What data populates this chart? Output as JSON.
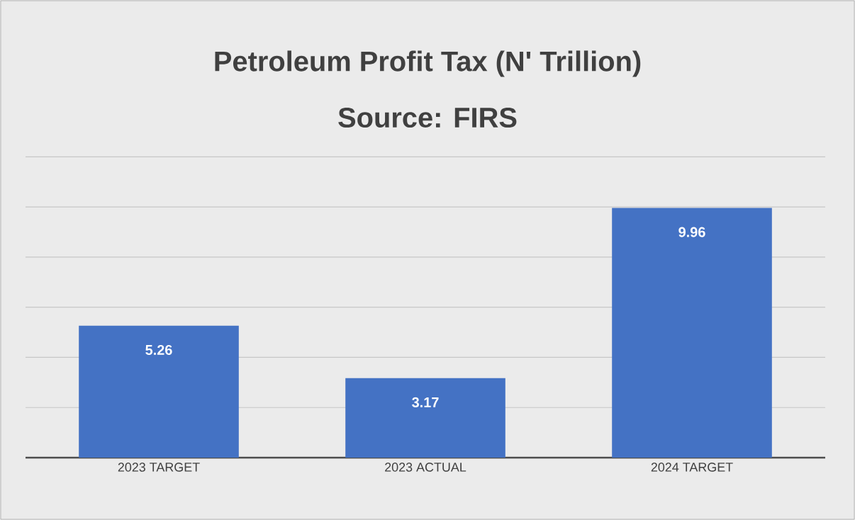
{
  "chart_data": {
    "type": "bar",
    "title": "Petroleum Profit Tax (N' Trillion)",
    "subtitle": "Source: FIRS",
    "categories": [
      "2023 TARGET",
      "2023 ACTUAL",
      "2024 TARGET"
    ],
    "values": [
      5.26,
      3.17,
      9.96
    ],
    "color": "#4472c4",
    "grid": "y",
    "tick_labels": "x",
    "data_labels": true
  }
}
